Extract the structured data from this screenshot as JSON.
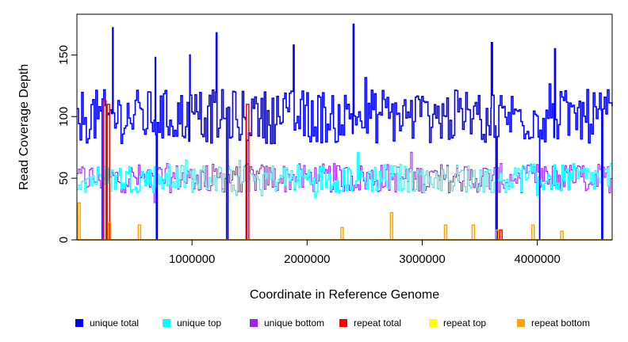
{
  "chart_data": {
    "type": "line",
    "title": "",
    "xlabel": "Coordinate in Reference Genome",
    "ylabel": "Read Coverage Depth",
    "xlim": [
      0,
      4650000
    ],
    "ylim": [
      0,
      183
    ],
    "x_ticks": [
      1000000,
      2000000,
      3000000,
      4000000
    ],
    "x_tick_labels": [
      "1000000",
      "2000000",
      "3000000",
      "4000000"
    ],
    "y_ticks": [
      0,
      50,
      100,
      150
    ],
    "y_tick_labels": [
      "0",
      "50",
      "100",
      "150"
    ],
    "grid": false,
    "legend_position": "bottom",
    "series": [
      {
        "name": "unique total",
        "color": "#0000ff",
        "base_value": 100,
        "spread": 22,
        "highlight_points": [
          {
            "x": 310000,
            "y": 172
          },
          {
            "x": 1210000,
            "y": 168
          },
          {
            "x": 2400000,
            "y": 175
          },
          {
            "x": 3600000,
            "y": 160
          },
          {
            "x": 4150000,
            "y": 155
          },
          {
            "x": 680000,
            "y": 148
          },
          {
            "x": 980000,
            "y": 150
          },
          {
            "x": 1880000,
            "y": 158
          }
        ],
        "dip_points": [
          {
            "x": 220000,
            "y": 0
          },
          {
            "x": 690000,
            "y": 0
          },
          {
            "x": 1300000,
            "y": 0
          },
          {
            "x": 1470000,
            "y": 0
          },
          {
            "x": 3640000,
            "y": 0
          },
          {
            "x": 4020000,
            "y": 0
          },
          {
            "x": 4560000,
            "y": 0
          }
        ]
      },
      {
        "name": "unique top",
        "color": "#00ffff",
        "base_value": 50,
        "spread": 12
      },
      {
        "name": "unique bottom",
        "color": "#a020f0",
        "base_value": 50,
        "spread": 12
      },
      {
        "name": "repeat total",
        "color": "#ff0000",
        "base_value": 0,
        "spikes": [
          {
            "x": 240000,
            "y": 113
          },
          {
            "x": 270000,
            "y": 110
          },
          {
            "x": 1480000,
            "y": 110
          },
          {
            "x": 3680000,
            "y": 8
          }
        ]
      },
      {
        "name": "repeat top",
        "color": "#ffff00",
        "base_value": 0
      },
      {
        "name": "repeat bottom",
        "color": "#ffa500",
        "base_value": 0,
        "spikes": [
          {
            "x": 15000,
            "y": 30
          },
          {
            "x": 280000,
            "y": 14
          },
          {
            "x": 540000,
            "y": 12
          },
          {
            "x": 2300000,
            "y": 10
          },
          {
            "x": 2730000,
            "y": 22
          },
          {
            "x": 3200000,
            "y": 12
          },
          {
            "x": 3440000,
            "y": 12
          },
          {
            "x": 3650000,
            "y": 8
          },
          {
            "x": 3960000,
            "y": 12
          },
          {
            "x": 4210000,
            "y": 7
          }
        ]
      }
    ]
  }
}
